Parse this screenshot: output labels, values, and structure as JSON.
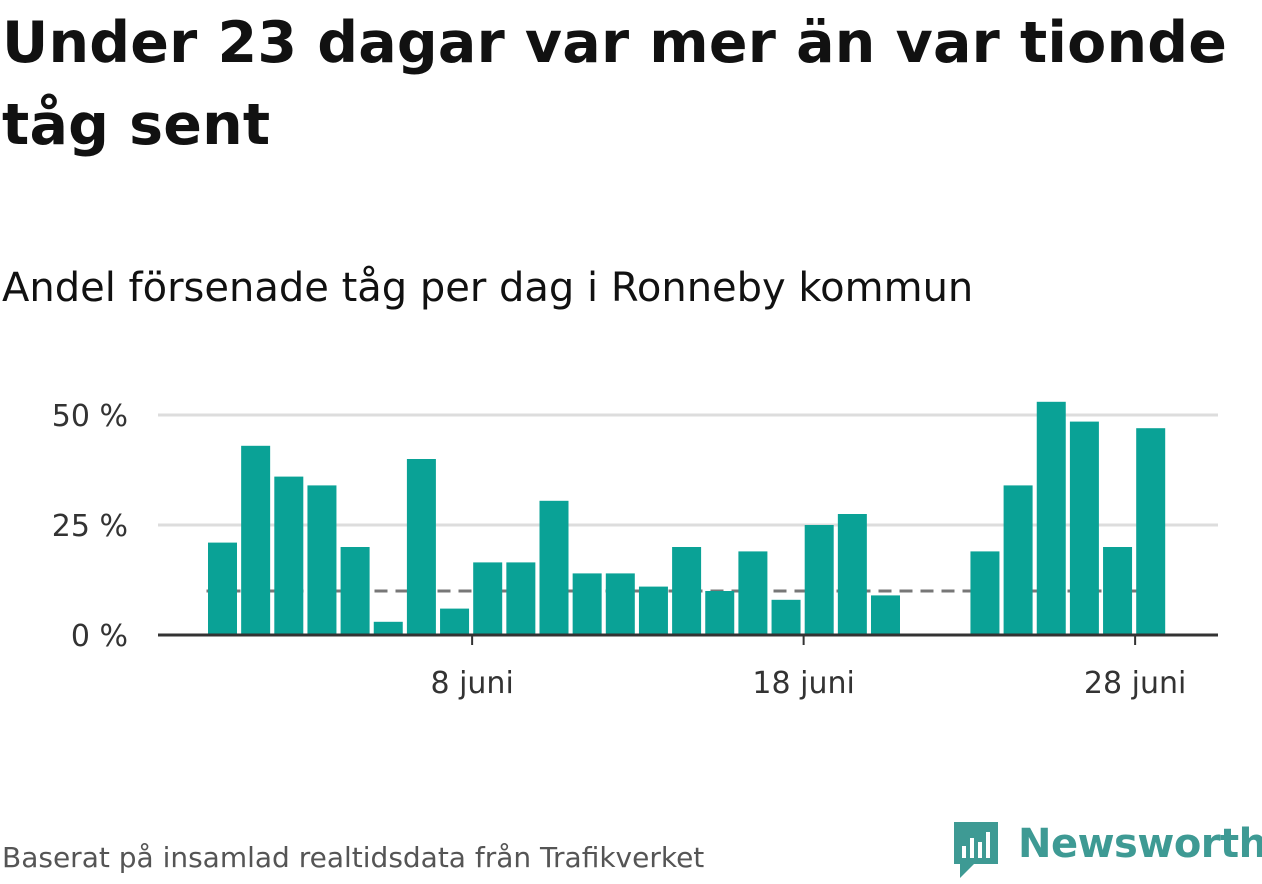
{
  "title": "Under 23 dagar var mer än var tionde tåg sent",
  "subtitle": "Andel försenade tåg per dag i Ronneby kommun",
  "footer": "Baserat på insamlad realtidsdata från Trafikverket",
  "brand": {
    "name": "Newsworthy",
    "color": "#3e9a94"
  },
  "chart_data": {
    "type": "bar",
    "x": [
      1,
      2,
      3,
      4,
      5,
      6,
      7,
      8,
      9,
      10,
      11,
      12,
      13,
      14,
      15,
      16,
      17,
      18,
      19,
      20,
      21,
      22,
      23,
      24,
      25,
      26,
      27,
      28,
      29,
      30
    ],
    "values": [
      21,
      43,
      36,
      34,
      20,
      3,
      40,
      6,
      16.5,
      16.5,
      30.5,
      14,
      14,
      11,
      20,
      10,
      19,
      8,
      25,
      27.5,
      9,
      null,
      null,
      19,
      34,
      53,
      48.5,
      20,
      47,
      null
    ],
    "x_ticks": [
      {
        "value": 8,
        "label": "8 juni"
      },
      {
        "value": 18,
        "label": "18 juni"
      },
      {
        "value": 28,
        "label": "28 juni"
      }
    ],
    "y_ticks": [
      {
        "value": 0,
        "label": "0 %"
      },
      {
        "value": 25,
        "label": "25 %"
      },
      {
        "value": 50,
        "label": "50 %"
      }
    ],
    "ylim": [
      0,
      55
    ],
    "reference_line": {
      "value": 10,
      "style": "dashed"
    },
    "grid": true,
    "colors": {
      "bar": "#0aa296",
      "reference": "#777777",
      "grid": "#dddddd",
      "axis": "#333333"
    }
  }
}
